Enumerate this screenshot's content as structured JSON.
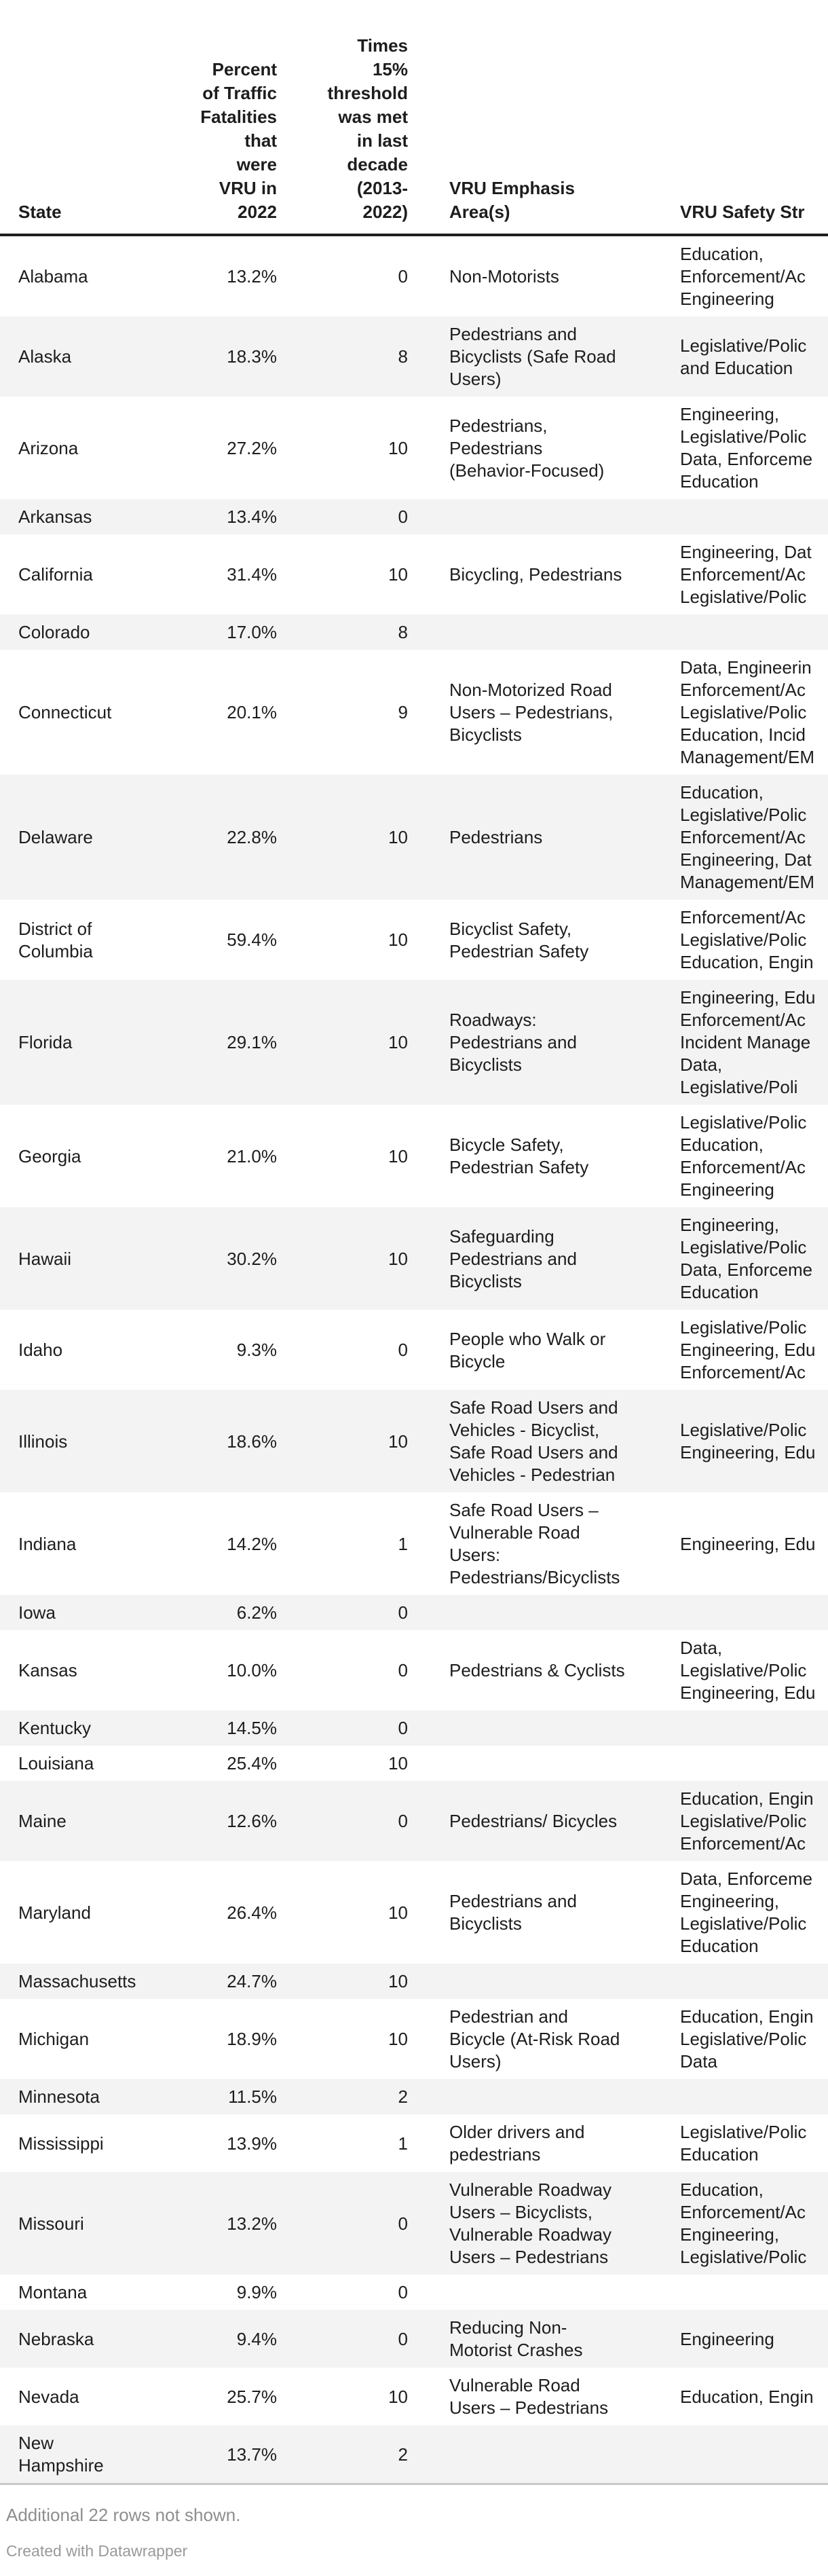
{
  "chart_data": {
    "type": "table",
    "title": "",
    "layout_hints": {
      "striped_rows": "even rows shaded",
      "right_edge_clipped": true,
      "header_rule": "thick dark line under header"
    },
    "columns": [
      {
        "name": "col-header-state",
        "align": "left",
        "label": "State",
        "label_lines": [
          "State"
        ]
      },
      {
        "name": "col-header-percent-vru",
        "align": "right",
        "label": "Percent of Traffic Fatalities that were VRU in 2022",
        "label_lines": [
          "Percent",
          "of Traffic",
          "Fatalities",
          "that",
          "were",
          "VRU in",
          "2022"
        ]
      },
      {
        "name": "col-header-threshold-times",
        "align": "right",
        "label": "Times 15% threshold was met in last decade (2013-2022)",
        "label_lines": [
          "Times",
          "15%",
          "threshold",
          "was met",
          "in last",
          "decade",
          "(2013-",
          "2022)"
        ]
      },
      {
        "name": "col-header-emphasis-areas",
        "align": "left",
        "label": "VRU Emphasis Area(s)",
        "label_lines": [
          "VRU Emphasis",
          "Area(s)"
        ]
      },
      {
        "name": "col-header-safety-strategies",
        "align": "left",
        "label": "VRU Safety Str",
        "label_lines": [
          "VRU Safety Str"
        ]
      }
    ],
    "rows": [
      {
        "state": [
          "Alabama"
        ],
        "pct": "13.2%",
        "times": "0",
        "emphasis": [
          "Non-Motorists"
        ],
        "strategies": [
          "Education,",
          "Enforcement/Ac",
          "Engineering"
        ]
      },
      {
        "state": [
          "Alaska"
        ],
        "pct": "18.3%",
        "times": "8",
        "emphasis": [
          "Pedestrians and",
          "Bicyclists (Safe Road",
          "Users)"
        ],
        "strategies": [
          "Legislative/Polic",
          "and Education"
        ]
      },
      {
        "state": [
          "Arizona"
        ],
        "pct": "27.2%",
        "times": "10",
        "emphasis": [
          "Pedestrians,",
          "Pedestrians",
          "(Behavior-Focused)"
        ],
        "strategies": [
          "Engineering,",
          "Legislative/Polic",
          "Data, Enforceme",
          "Education"
        ]
      },
      {
        "state": [
          "Arkansas"
        ],
        "pct": "13.4%",
        "times": "0",
        "emphasis": [],
        "strategies": []
      },
      {
        "state": [
          "California"
        ],
        "pct": "31.4%",
        "times": "10",
        "emphasis": [
          "Bicycling, Pedestrians"
        ],
        "strategies": [
          "Engineering, Dat",
          "Enforcement/Ac",
          "Legislative/Polic"
        ]
      },
      {
        "state": [
          "Colorado"
        ],
        "pct": "17.0%",
        "times": "8",
        "emphasis": [],
        "strategies": []
      },
      {
        "state": [
          "Connecticut"
        ],
        "pct": "20.1%",
        "times": "9",
        "emphasis": [
          "Non-Motorized Road",
          "Users – Pedestrians,",
          "Bicyclists"
        ],
        "strategies": [
          "Data, Engineerin",
          "Enforcement/Ac",
          "Legislative/Polic",
          "Education, Incid",
          "Management/EM"
        ]
      },
      {
        "state": [
          "Delaware"
        ],
        "pct": "22.8%",
        "times": "10",
        "emphasis": [
          "Pedestrians"
        ],
        "strategies": [
          "Education,",
          "Legislative/Polic",
          "Enforcement/Ac",
          "Engineering, Dat",
          "Management/EM"
        ]
      },
      {
        "state": [
          "District of",
          "Columbia"
        ],
        "pct": "59.4%",
        "times": "10",
        "emphasis": [
          "Bicyclist Safety,",
          "Pedestrian Safety"
        ],
        "strategies": [
          "Enforcement/Ac",
          "Legislative/Polic",
          "Education, Engin"
        ]
      },
      {
        "state": [
          "Florida"
        ],
        "pct": "29.1%",
        "times": "10",
        "emphasis": [
          "Roadways:",
          "Pedestrians and",
          "Bicyclists"
        ],
        "strategies": [
          "Engineering, Edu",
          "Enforcement/Ac",
          "Incident Manage",
          "Data,",
          "Legislative/Poli"
        ]
      },
      {
        "state": [
          "Georgia"
        ],
        "pct": "21.0%",
        "times": "10",
        "emphasis": [
          "Bicycle Safety,",
          "Pedestrian Safety"
        ],
        "strategies": [
          "Legislative/Polic",
          "Education,",
          "Enforcement/Ac",
          "Engineering"
        ]
      },
      {
        "state": [
          "Hawaii"
        ],
        "pct": "30.2%",
        "times": "10",
        "emphasis": [
          "Safeguarding",
          "Pedestrians and",
          "Bicyclists"
        ],
        "strategies": [
          "Engineering,",
          "Legislative/Polic",
          "Data, Enforceme",
          "Education"
        ]
      },
      {
        "state": [
          "Idaho"
        ],
        "pct": "9.3%",
        "times": "0",
        "emphasis": [
          "People who Walk or",
          "Bicycle"
        ],
        "strategies": [
          "Legislative/Polic",
          "Engineering, Edu",
          "Enforcement/Ac"
        ]
      },
      {
        "state": [
          "Illinois"
        ],
        "pct": "18.6%",
        "times": "10",
        "emphasis": [
          "Safe Road Users and",
          "Vehicles - Bicyclist,",
          "Safe Road Users and",
          "Vehicles - Pedestrian"
        ],
        "strategies": [
          "Legislative/Polic",
          "Engineering, Edu"
        ]
      },
      {
        "state": [
          "Indiana"
        ],
        "pct": "14.2%",
        "times": "1",
        "emphasis": [
          "Safe Road Users –",
          "Vulnerable Road",
          "Users:",
          "Pedestrians/Bicyclists"
        ],
        "strategies": [
          "Engineering, Edu"
        ]
      },
      {
        "state": [
          "Iowa"
        ],
        "pct": "6.2%",
        "times": "0",
        "emphasis": [],
        "strategies": []
      },
      {
        "state": [
          "Kansas"
        ],
        "pct": "10.0%",
        "times": "0",
        "emphasis": [
          "Pedestrians & Cyclists"
        ],
        "strategies": [
          "Data,",
          "Legislative/Polic",
          "Engineering, Edu"
        ]
      },
      {
        "state": [
          "Kentucky"
        ],
        "pct": "14.5%",
        "times": "0",
        "emphasis": [],
        "strategies": []
      },
      {
        "state": [
          "Louisiana"
        ],
        "pct": "25.4%",
        "times": "10",
        "emphasis": [],
        "strategies": []
      },
      {
        "state": [
          "Maine"
        ],
        "pct": "12.6%",
        "times": "0",
        "emphasis": [
          "Pedestrians/ Bicycles"
        ],
        "strategies": [
          "Education, Engin",
          "Legislative/Polic",
          "Enforcement/Ac"
        ]
      },
      {
        "state": [
          "Maryland"
        ],
        "pct": "26.4%",
        "times": "10",
        "emphasis": [
          "Pedestrians and",
          "Bicyclists"
        ],
        "strategies": [
          "Data, Enforceme",
          "Engineering,",
          "Legislative/Polic",
          "Education"
        ]
      },
      {
        "state": [
          "Massachusetts"
        ],
        "pct": "24.7%",
        "times": "10",
        "emphasis": [],
        "strategies": []
      },
      {
        "state": [
          "Michigan"
        ],
        "pct": "18.9%",
        "times": "10",
        "emphasis": [
          "Pedestrian and",
          "Bicycle (At-Risk Road",
          "Users)"
        ],
        "strategies": [
          "Education, Engin",
          "Legislative/Polic",
          "Data"
        ]
      },
      {
        "state": [
          "Minnesota"
        ],
        "pct": "11.5%",
        "times": "2",
        "emphasis": [],
        "strategies": []
      },
      {
        "state": [
          "Mississippi"
        ],
        "pct": "13.9%",
        "times": "1",
        "emphasis": [
          "Older drivers and",
          "pedestrians"
        ],
        "strategies": [
          "Legislative/Polic",
          "Education"
        ]
      },
      {
        "state": [
          "Missouri"
        ],
        "pct": "13.2%",
        "times": "0",
        "emphasis": [
          "Vulnerable Roadway",
          "Users – Bicyclists,",
          "Vulnerable Roadway",
          "Users – Pedestrians"
        ],
        "strategies": [
          "Education,",
          "Enforcement/Ac",
          "Engineering,",
          "Legislative/Polic"
        ]
      },
      {
        "state": [
          "Montana"
        ],
        "pct": "9.9%",
        "times": "0",
        "emphasis": [],
        "strategies": []
      },
      {
        "state": [
          "Nebraska"
        ],
        "pct": "9.4%",
        "times": "0",
        "emphasis": [
          "Reducing Non-",
          "Motorist Crashes"
        ],
        "strategies": [
          "Engineering"
        ]
      },
      {
        "state": [
          "Nevada"
        ],
        "pct": "25.7%",
        "times": "10",
        "emphasis": [
          "Vulnerable Road",
          "Users – Pedestrians"
        ],
        "strategies": [
          "Education, Engin"
        ]
      },
      {
        "state": [
          "New",
          "Hampshire"
        ],
        "pct": "13.7%",
        "times": "2",
        "emphasis": [],
        "strategies": []
      }
    ]
  },
  "footer": {
    "note": "Additional 22 rows not shown.",
    "credit": "Created with Datawrapper"
  }
}
